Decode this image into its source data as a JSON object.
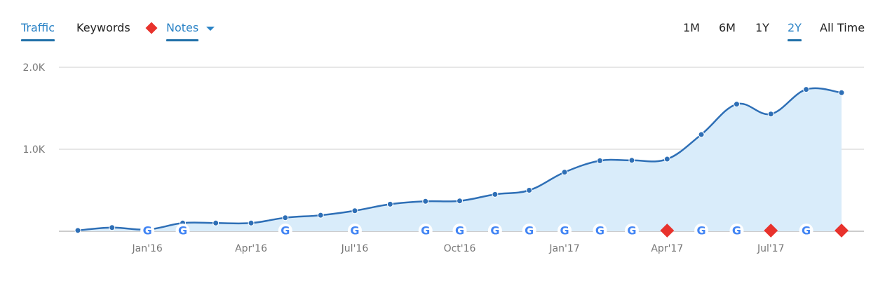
{
  "tabs": {
    "traffic": "Traffic",
    "keywords": "Keywords",
    "notes": "Notes"
  },
  "ranges": [
    "1M",
    "6M",
    "1Y",
    "2Y",
    "All Time"
  ],
  "active_range": "2Y",
  "colors": {
    "accent": "#2b83c6",
    "line": "#2e6fb6",
    "area": "#d9ecfa",
    "note": "#e8322c"
  },
  "chart_data": {
    "type": "area",
    "series": [
      {
        "x": [
          "2015-11-01",
          "2015-12-01",
          "2016-01-01",
          "2016-02-01",
          "2016-03-01",
          "2016-04-01",
          "2016-05-01",
          "2016-06-01",
          "2016-07-01",
          "2016-08-01",
          "2016-09-01",
          "2016-10-01",
          "2016-11-01",
          "2016-12-01",
          "2017-01-01",
          "2017-02-01",
          "2017-03-01",
          "2017-04-01",
          "2017-05-01",
          "2017-06-01",
          "2017-07-01",
          "2017-08-01",
          "2017-09-01"
        ],
        "values": [
          10,
          45,
          20,
          100,
          100,
          100,
          165,
          195,
          250,
          330,
          365,
          370,
          450,
          500,
          720,
          860,
          865,
          880,
          1180,
          1550,
          1430,
          1730,
          1690
        ]
      }
    ],
    "xlabels": [
      "Jan'16",
      "Apr'16",
      "Jul'16",
      "Oct'16",
      "Jan'17",
      "Apr'17",
      "Jul'17"
    ],
    "xtick_dates": [
      "2016-01-01",
      "2016-04-01",
      "2016-07-01",
      "2016-10-01",
      "2017-01-01",
      "2017-04-01",
      "2017-07-01"
    ],
    "yticks": [
      "2.0K",
      "1.0K"
    ],
    "ytick_values": [
      2000,
      1000
    ],
    "ylim": [
      0,
      2000
    ],
    "grid": true,
    "google_update_dates": [
      "2016-01-01",
      "2016-02-01",
      "2016-05-01",
      "2016-07-01",
      "2016-09-01",
      "2016-10-01",
      "2016-11-01",
      "2016-12-01",
      "2017-01-01",
      "2017-02-01",
      "2017-03-01",
      "2017-05-01",
      "2017-06-01",
      "2017-08-01"
    ],
    "note_dates": [
      "2017-04-01",
      "2017-07-01",
      "2017-09-01"
    ]
  }
}
